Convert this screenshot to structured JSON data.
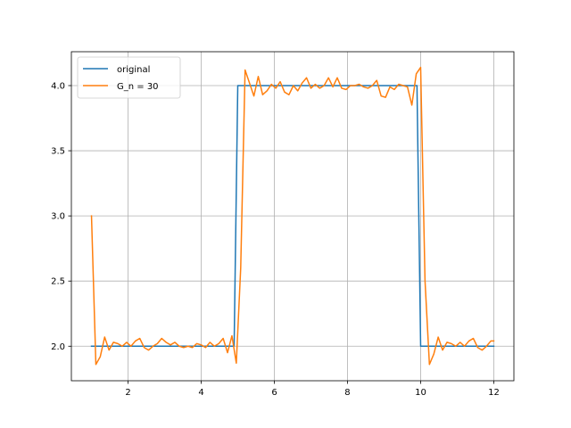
{
  "chart_data": {
    "type": "line",
    "title": "",
    "xlabel": "",
    "ylabel": "",
    "xlim": [
      0.45,
      12.55
    ],
    "ylim": [
      1.735,
      4.26
    ],
    "xticks": [
      2,
      4,
      6,
      8,
      10,
      12
    ],
    "yticks": [
      2.0,
      2.5,
      3.0,
      3.5,
      4.0
    ],
    "xtick_labels": [
      "2",
      "4",
      "6",
      "8",
      "10",
      "12"
    ],
    "ytick_labels": [
      "2.0",
      "2.5",
      "3.0",
      "3.5",
      "4.0"
    ],
    "grid": true,
    "legend_position": "upper-left",
    "series": [
      {
        "name": "original",
        "color": "#1f77b4",
        "x": [
          1.0,
          4.9,
          5.0,
          9.9,
          10.0,
          12.0
        ],
        "y": [
          2.0,
          2.0,
          4.0,
          4.0,
          2.0,
          2.0
        ]
      },
      {
        "name": "G_n = 30",
        "color": "#ff7f0e",
        "x": [
          1.0,
          1.12,
          1.24,
          1.36,
          1.48,
          1.6,
          1.72,
          1.84,
          1.96,
          2.08,
          2.2,
          2.32,
          2.44,
          2.56,
          2.68,
          2.8,
          2.92,
          3.04,
          3.16,
          3.28,
          3.4,
          3.52,
          3.64,
          3.76,
          3.88,
          4.0,
          4.12,
          4.24,
          4.36,
          4.48,
          4.6,
          4.72,
          4.84,
          4.96,
          5.08,
          5.2,
          5.32,
          5.44,
          5.56,
          5.68,
          5.8,
          5.92,
          6.04,
          6.16,
          6.28,
          6.4,
          6.52,
          6.64,
          6.76,
          6.88,
          7.0,
          7.12,
          7.24,
          7.36,
          7.48,
          7.6,
          7.72,
          7.84,
          7.96,
          8.08,
          8.2,
          8.32,
          8.44,
          8.56,
          8.68,
          8.8,
          8.92,
          9.04,
          9.16,
          9.28,
          9.4,
          9.52,
          9.64,
          9.76,
          9.88,
          10.0,
          10.12,
          10.24,
          10.36,
          10.48,
          10.6,
          10.72,
          10.84,
          10.96,
          11.08,
          11.2,
          11.32,
          11.44,
          11.56,
          11.68,
          11.8,
          11.92,
          12.0
        ],
        "y": [
          3.0,
          1.86,
          1.92,
          2.07,
          1.97,
          2.03,
          2.02,
          2.0,
          2.03,
          2.0,
          2.04,
          2.06,
          1.99,
          1.97,
          2.0,
          2.02,
          2.06,
          2.03,
          2.01,
          2.03,
          2.0,
          1.99,
          2.0,
          1.99,
          2.02,
          2.01,
          1.99,
          2.03,
          2.0,
          2.02,
          2.06,
          1.95,
          2.08,
          1.87,
          2.6,
          4.12,
          4.02,
          3.92,
          4.07,
          3.93,
          3.96,
          4.01,
          3.98,
          4.03,
          3.95,
          3.93,
          4.0,
          3.96,
          4.02,
          4.06,
          3.98,
          4.01,
          3.98,
          4.0,
          4.06,
          3.99,
          4.06,
          3.98,
          3.97,
          4.0,
          4.0,
          4.01,
          3.99,
          3.98,
          4.0,
          4.04,
          3.92,
          3.91,
          3.99,
          3.97,
          4.01,
          4.0,
          3.99,
          3.85,
          4.09,
          4.14,
          2.5,
          1.86,
          1.94,
          2.07,
          1.97,
          2.03,
          2.02,
          2.0,
          2.03,
          2.0,
          2.04,
          2.06,
          1.99,
          1.97,
          2.0,
          2.04,
          2.04
        ]
      }
    ]
  }
}
